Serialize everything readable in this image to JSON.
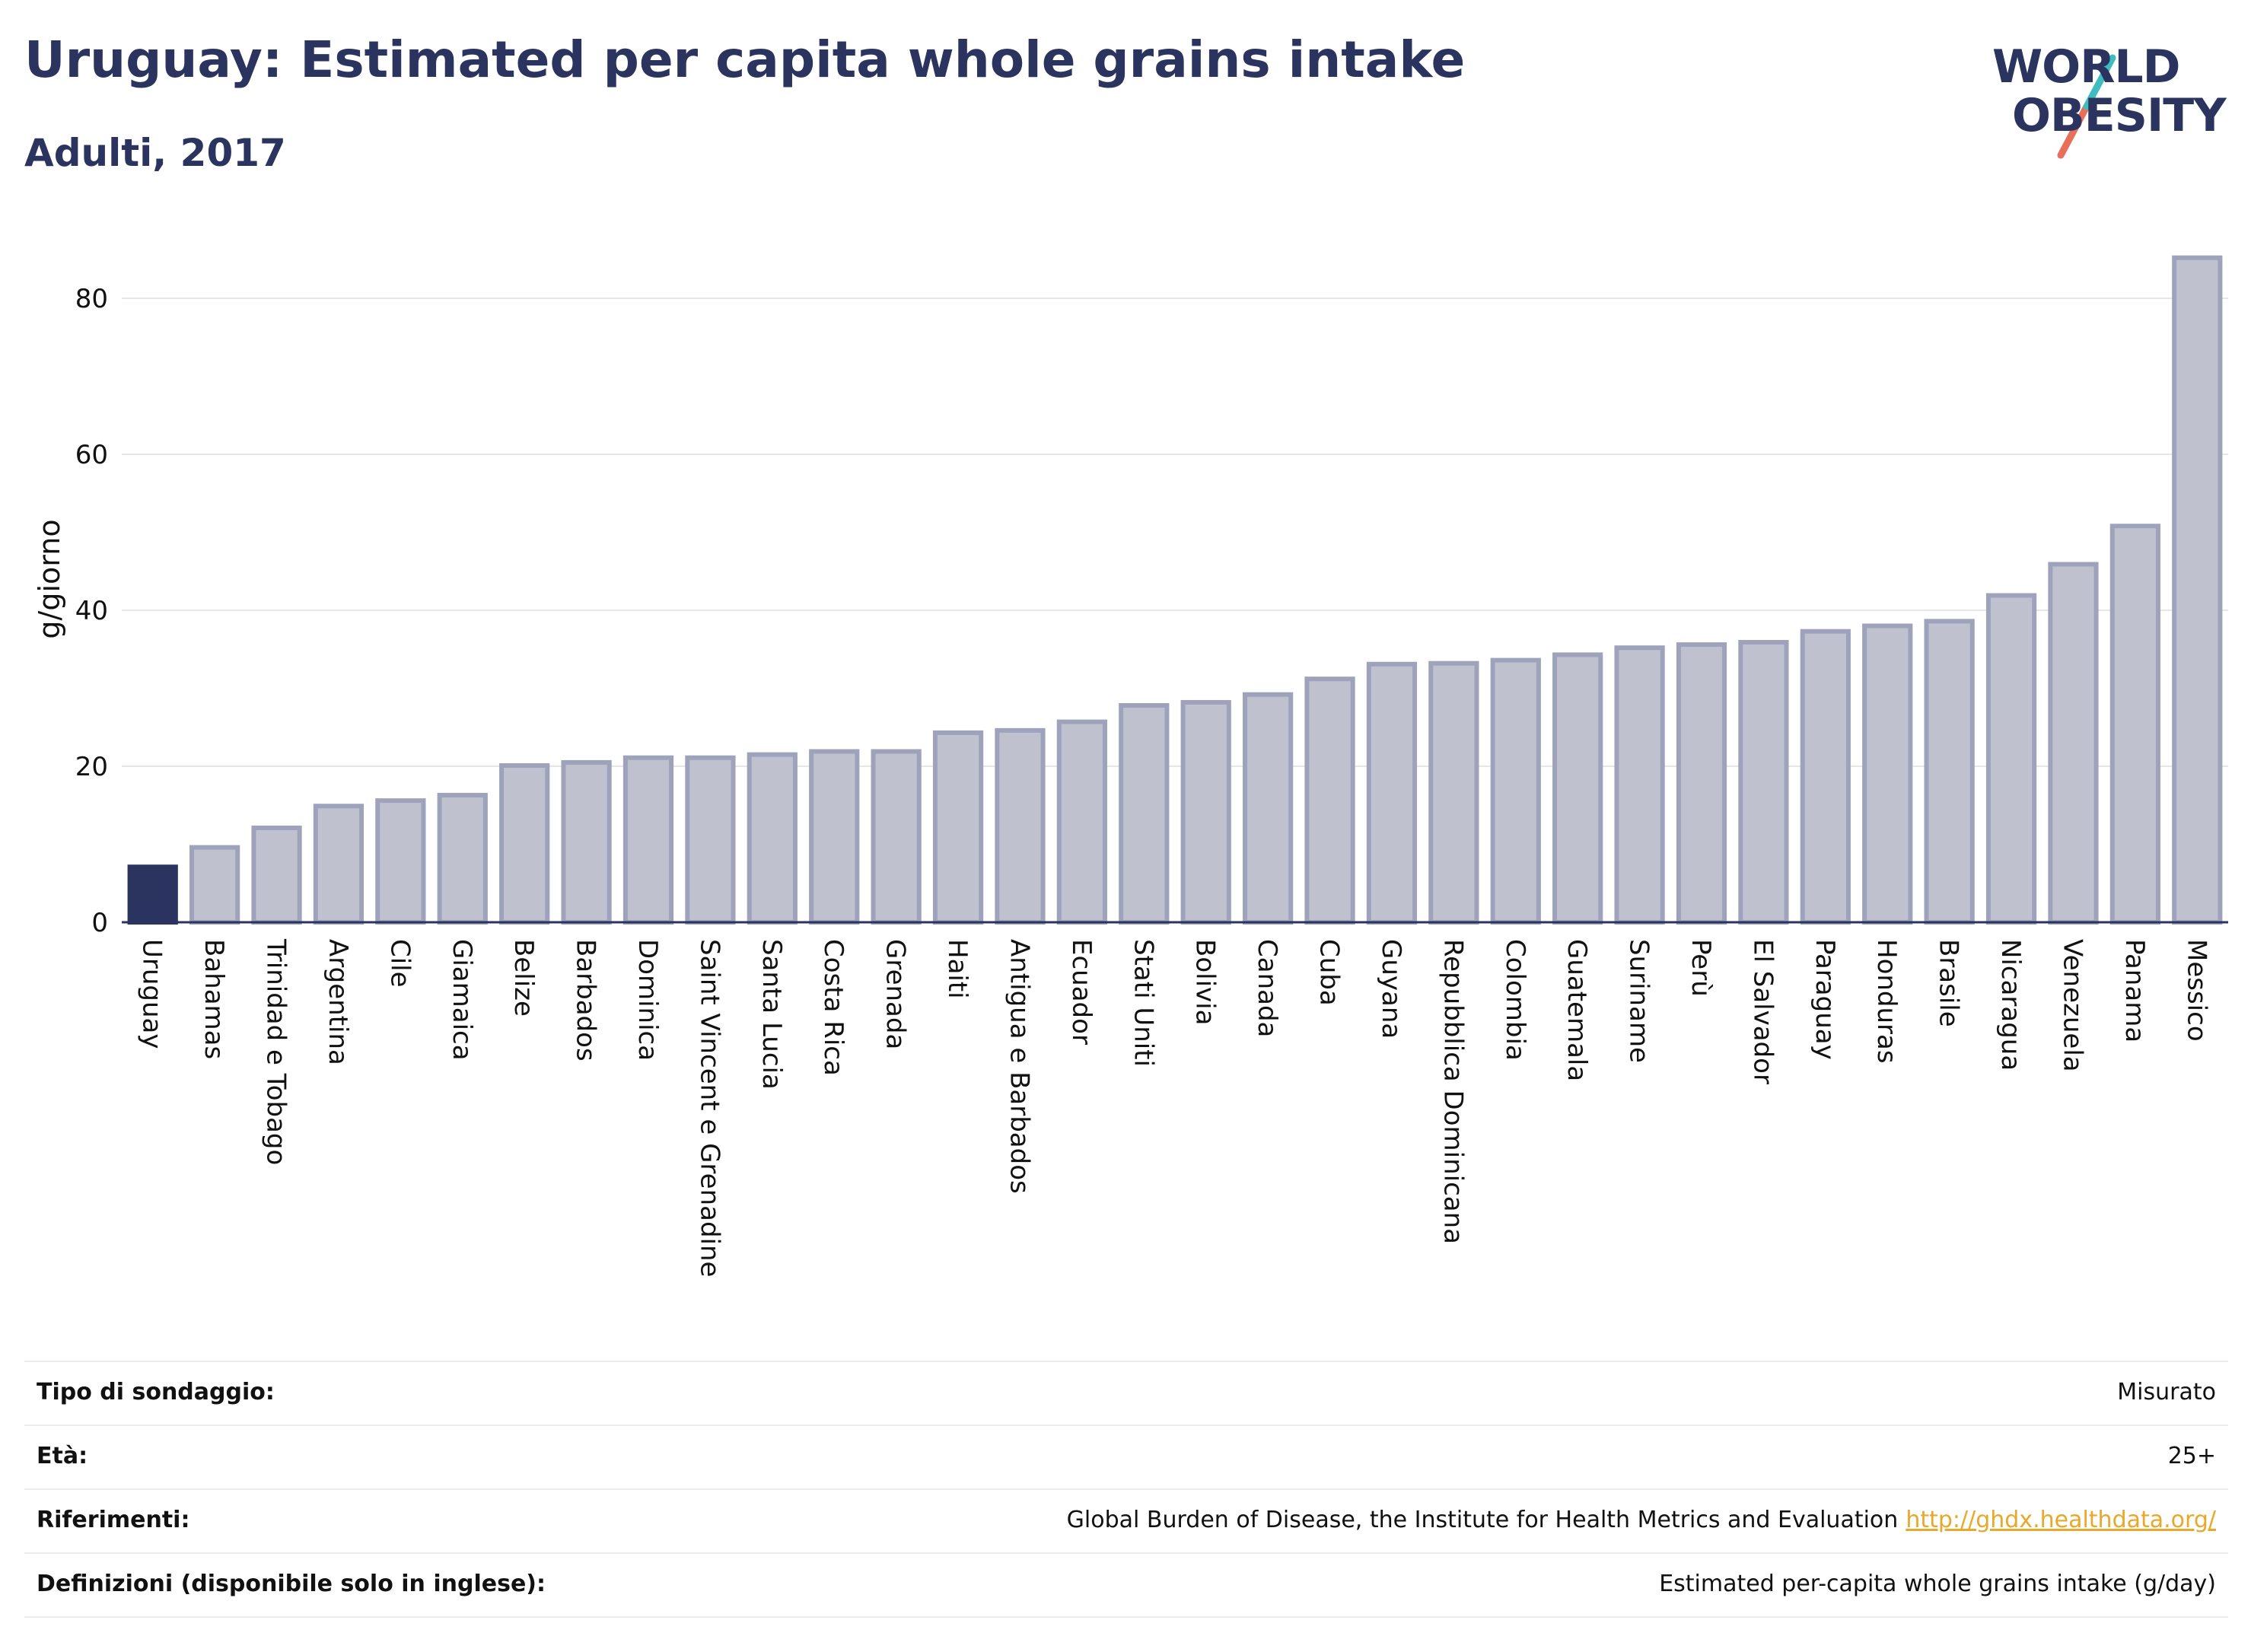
{
  "header": {
    "title": "Uruguay: Estimated per capita whole grains intake",
    "subtitle": "Adulti, 2017"
  },
  "logo": {
    "line1": "WORLD",
    "line2": "OBESITY",
    "colors": {
      "text": "#2a345e",
      "slash_top": "#3fbcc0",
      "slash_bottom": "#e8705a"
    }
  },
  "chart_data": {
    "type": "bar",
    "ylabel": "g/giorno",
    "ylim": [
      0,
      88
    ],
    "yticks": [
      0,
      20,
      40,
      60,
      80
    ],
    "grid": true,
    "highlight": "Uruguay",
    "colors": {
      "highlight": "#2a345e",
      "bar_fill": "#bfc2ce",
      "bar_stroke": "#9ea3bb",
      "grid": "#e6e6e6",
      "axis": "#2a345e"
    },
    "categories": [
      "Uruguay",
      "Bahamas",
      "Trinidad e Tobago",
      "Argentina",
      "Cile",
      "Giamaica",
      "Belize",
      "Barbados",
      "Dominica",
      "Saint Vincent e Grenadine",
      "Santa Lucia",
      "Costa Rica",
      "Grenada",
      "Haiti",
      "Antigua e Barbados",
      "Ecuador",
      "Stati Uniti",
      "Bolivia",
      "Canada",
      "Cuba",
      "Guyana",
      "Repubblica Dominicana",
      "Colombia",
      "Guatemala",
      "Suriname",
      "Perù",
      "El Salvador",
      "Paraguay",
      "Honduras",
      "Brasile",
      "Nicaragua",
      "Venezuela",
      "Panama",
      "Messico"
    ],
    "values": [
      7.1,
      9.6,
      12.1,
      14.9,
      15.6,
      16.3,
      20.1,
      20.5,
      21.1,
      21.1,
      21.5,
      21.9,
      21.9,
      24.3,
      24.6,
      25.7,
      27.8,
      28.2,
      29.2,
      31.2,
      33.1,
      33.2,
      33.6,
      34.3,
      35.2,
      35.6,
      35.9,
      37.3,
      38.0,
      38.6,
      41.9,
      45.9,
      50.8,
      85.2
    ]
  },
  "meta": {
    "rows": [
      {
        "label": "Tipo di sondaggio:",
        "value": "Misurato"
      },
      {
        "label": "Età:",
        "value": "25+"
      },
      {
        "label": "Riferimenti:",
        "value": "Global Burden of Disease, the Institute for Health Metrics and Evaluation",
        "link": "http://ghdx.healthdata.org/"
      },
      {
        "label": "Definizioni (disponibile solo in inglese):",
        "value": "Estimated per-capita whole grains intake (g/day)"
      }
    ]
  }
}
